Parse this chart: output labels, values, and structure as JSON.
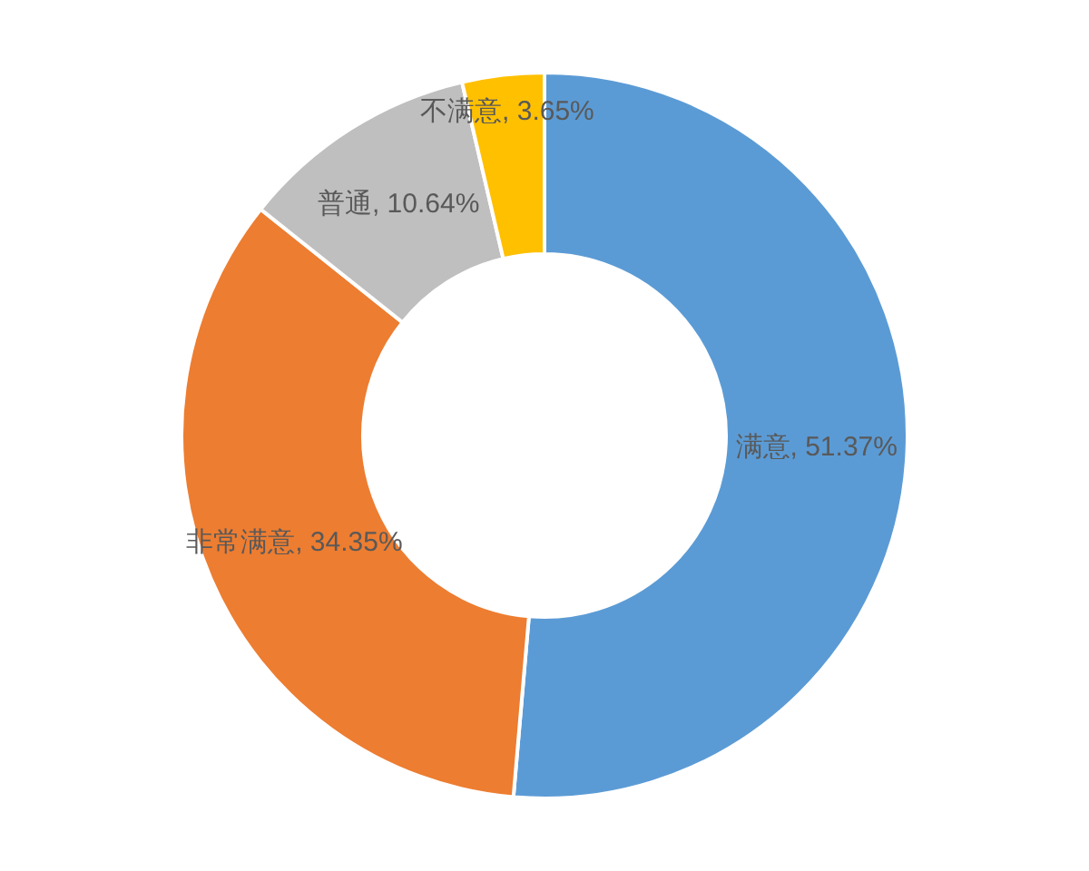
{
  "chart_data": {
    "type": "donut",
    "categories": [
      "满意",
      "非常满意",
      "普通",
      "不满意"
    ],
    "values": [
      51.37,
      34.35,
      10.64,
      3.65
    ],
    "colors": [
      "#5b9bd5",
      "#ed7d31",
      "#bfbfbf",
      "#ffc000"
    ],
    "value_labels": [
      "51.37%",
      "34.35%",
      "10.64%",
      "3.65%"
    ]
  }
}
